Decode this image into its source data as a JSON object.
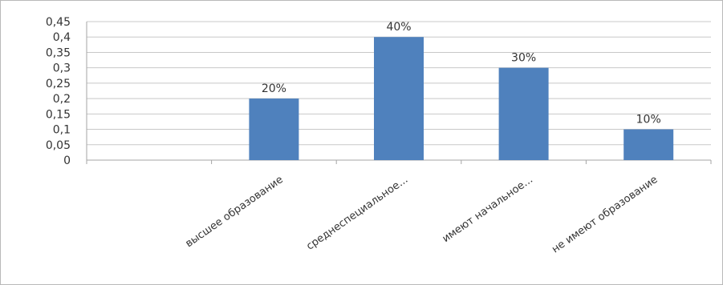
{
  "chart_data": {
    "type": "bar",
    "categories": [
      "",
      "высшее образование",
      "среднеспециальное...",
      "имеют начальное...",
      "не имеют образование"
    ],
    "values": [
      null,
      0.2,
      0.4,
      0.3,
      0.1
    ],
    "data_labels": [
      "",
      "20%",
      "40%",
      "30%",
      "10%"
    ],
    "yticks": [
      "0",
      "0,05",
      "0,1",
      "0,15",
      "0,2",
      "0,25",
      "0,3",
      "0,35",
      "0,4",
      "0,45"
    ],
    "ylim": [
      0,
      0.45
    ],
    "grid": true,
    "legend": "none",
    "title": "",
    "xlabel": "",
    "ylabel": "",
    "bar_color": "#4F81BD",
    "grid_color": "#c8c8c8",
    "axis_color": "#a6a6a6"
  }
}
